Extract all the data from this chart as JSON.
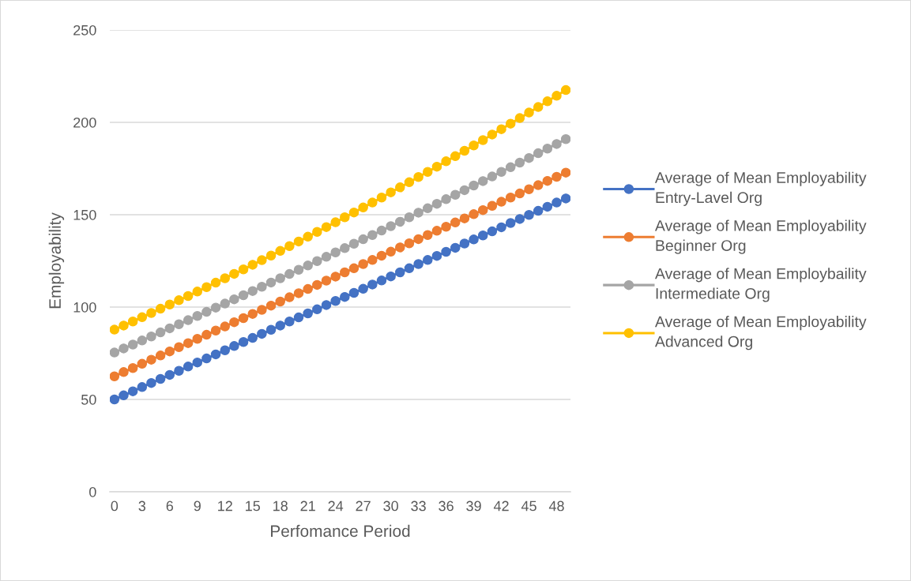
{
  "chart_data": {
    "type": "line",
    "xlabel": "Perfomance Period",
    "ylabel": "Employability",
    "categories": [
      "0",
      null,
      null,
      "3",
      null,
      null,
      "6",
      null,
      null,
      "9",
      null,
      null,
      "12",
      null,
      null,
      "15",
      null,
      null,
      "18",
      null,
      null,
      "21",
      null,
      null,
      "24",
      null,
      null,
      "27",
      null,
      null,
      "30",
      null,
      null,
      "33",
      null,
      null,
      "36",
      null,
      null,
      "39",
      null,
      null,
      "42",
      null,
      null,
      "45",
      null,
      null,
      "48",
      null
    ],
    "ylim": [
      0,
      250
    ],
    "yticks": [
      0,
      50,
      100,
      150,
      200,
      250
    ],
    "grid": "y",
    "legend": "right",
    "marker": "circle",
    "line_style": "solid",
    "series": [
      {
        "name": "Average of Mean Employability\nEntry-Lavel Org",
        "color": "#4472c4",
        "values": [
          50.0,
          52.2,
          54.4,
          56.7,
          58.9,
          61.1,
          63.3,
          65.5,
          67.8,
          70.0,
          72.2,
          74.4,
          76.6,
          78.9,
          81.1,
          83.3,
          85.5,
          87.7,
          90.0,
          92.2,
          94.4,
          96.6,
          98.8,
          101.1,
          103.3,
          105.5,
          107.7,
          109.9,
          112.2,
          114.4,
          116.6,
          118.8,
          121.0,
          123.3,
          125.5,
          127.7,
          129.9,
          132.1,
          134.4,
          136.6,
          138.8,
          141.0,
          143.2,
          145.5,
          147.7,
          149.9,
          152.1,
          154.3,
          156.6,
          158.8
        ]
      },
      {
        "name": "Average of Mean Employability\nBeginner Org",
        "color": "#ed7d31",
        "values": [
          62.5,
          64.8,
          67.0,
          69.3,
          71.5,
          73.8,
          76.0,
          78.3,
          80.5,
          82.8,
          85.0,
          87.3,
          89.5,
          91.8,
          94.0,
          96.3,
          98.5,
          100.8,
          103.0,
          105.3,
          107.5,
          109.8,
          112.0,
          114.3,
          116.5,
          118.8,
          121.0,
          123.3,
          125.5,
          127.8,
          130.0,
          132.3,
          134.5,
          136.8,
          139.0,
          141.3,
          143.5,
          145.8,
          148.0,
          150.3,
          152.5,
          154.8,
          157.0,
          159.3,
          161.5,
          163.8,
          166.0,
          168.3,
          170.5,
          172.8
        ]
      },
      {
        "name": "Average of Mean Employbaility\nIntermediate Org",
        "color": "#a5a5a5",
        "values": [
          75.4,
          77.6,
          79.7,
          81.9,
          84.1,
          86.3,
          88.5,
          90.7,
          92.9,
          95.2,
          97.4,
          99.7,
          101.9,
          104.2,
          106.4,
          108.7,
          111.0,
          113.3,
          115.6,
          117.9,
          120.2,
          122.5,
          124.9,
          127.2,
          129.6,
          131.9,
          134.3,
          136.7,
          139.0,
          141.4,
          143.8,
          146.2,
          148.6,
          151.1,
          153.5,
          155.9,
          158.4,
          160.8,
          163.3,
          165.8,
          168.2,
          170.7,
          173.2,
          175.7,
          178.2,
          180.7,
          183.3,
          185.8,
          188.3,
          190.9
        ]
      },
      {
        "name": "Average of Mean Employability\nAdvanced Org",
        "color": "#ffc000",
        "values": [
          87.8,
          90.0,
          92.2,
          94.5,
          96.8,
          99.1,
          101.4,
          103.7,
          106.0,
          108.4,
          110.8,
          113.2,
          115.6,
          118.0,
          120.4,
          122.9,
          125.4,
          127.9,
          130.4,
          133.0,
          135.5,
          138.1,
          140.7,
          143.3,
          145.9,
          148.6,
          151.2,
          153.9,
          156.6,
          159.3,
          162.1,
          164.8,
          167.6,
          170.4,
          173.2,
          176.0,
          178.9,
          181.7,
          184.6,
          187.5,
          190.4,
          193.4,
          196.3,
          199.3,
          202.3,
          205.3,
          208.3,
          211.4,
          214.4,
          217.5
        ]
      }
    ]
  }
}
